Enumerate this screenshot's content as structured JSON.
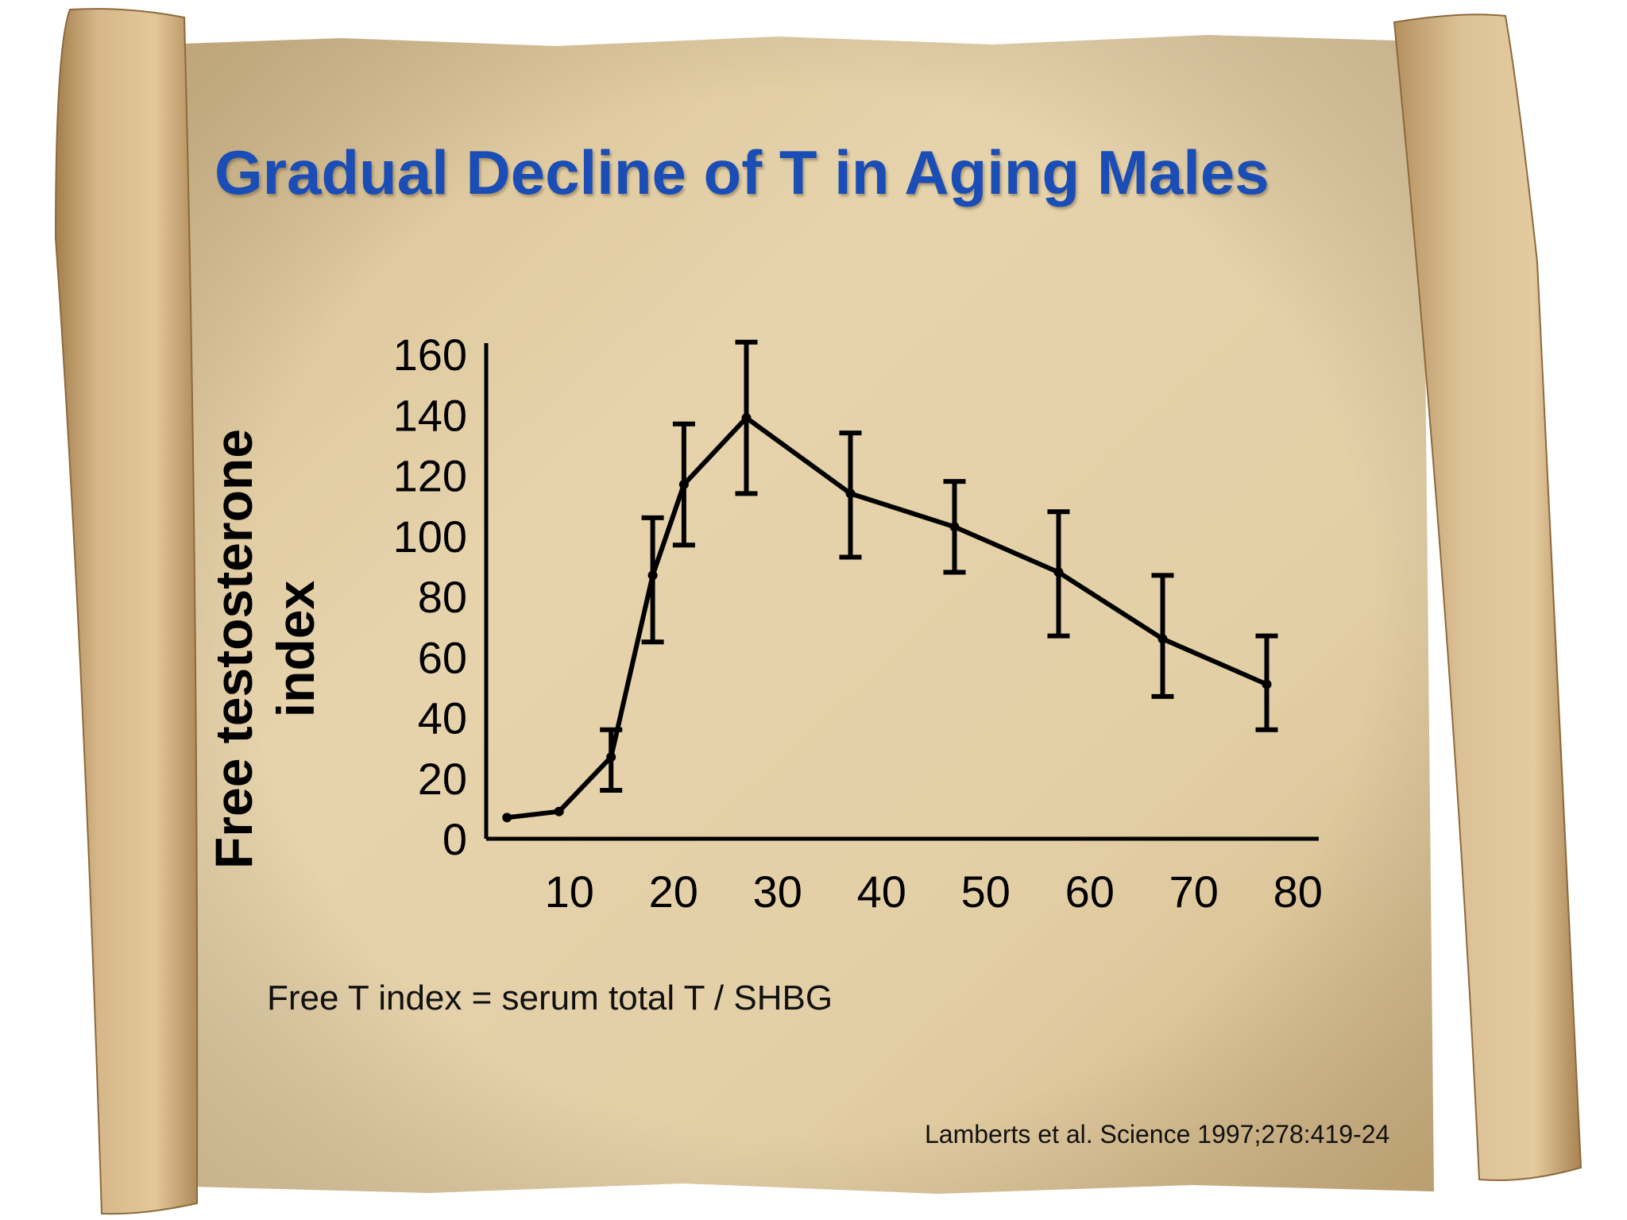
{
  "title": "Gradual Decline of T in Aging Males",
  "note": "Free T index = serum total T / SHBG",
  "citation": "Lamberts et al. Science 1997;278:419-24",
  "colors": {
    "title": "#1a4db5",
    "paper": "#e2cfa8",
    "roll": "#c9a776"
  },
  "chart_data": {
    "type": "line",
    "title": "",
    "xlabel": "",
    "ylabel": "Free testosterone index",
    "xlim": [
      2,
      82
    ],
    "ylim": [
      0,
      160
    ],
    "xticks": [
      10,
      20,
      30,
      40,
      50,
      60,
      70,
      80
    ],
    "yticks": [
      0,
      20,
      40,
      60,
      80,
      100,
      120,
      140,
      160
    ],
    "grid": false,
    "series": [
      {
        "x": [
          4,
          9,
          14,
          18,
          21,
          27,
          37,
          47,
          57,
          67,
          77
        ],
        "y": [
          7,
          9,
          27,
          87,
          117,
          139,
          114,
          103,
          88,
          66,
          51
        ],
        "err_low": [
          7,
          9,
          16,
          65,
          97,
          114,
          93,
          88,
          67,
          47,
          36
        ],
        "err_high": [
          7,
          9,
          36,
          106,
          137,
          164,
          134,
          118,
          108,
          87,
          67
        ]
      }
    ]
  }
}
